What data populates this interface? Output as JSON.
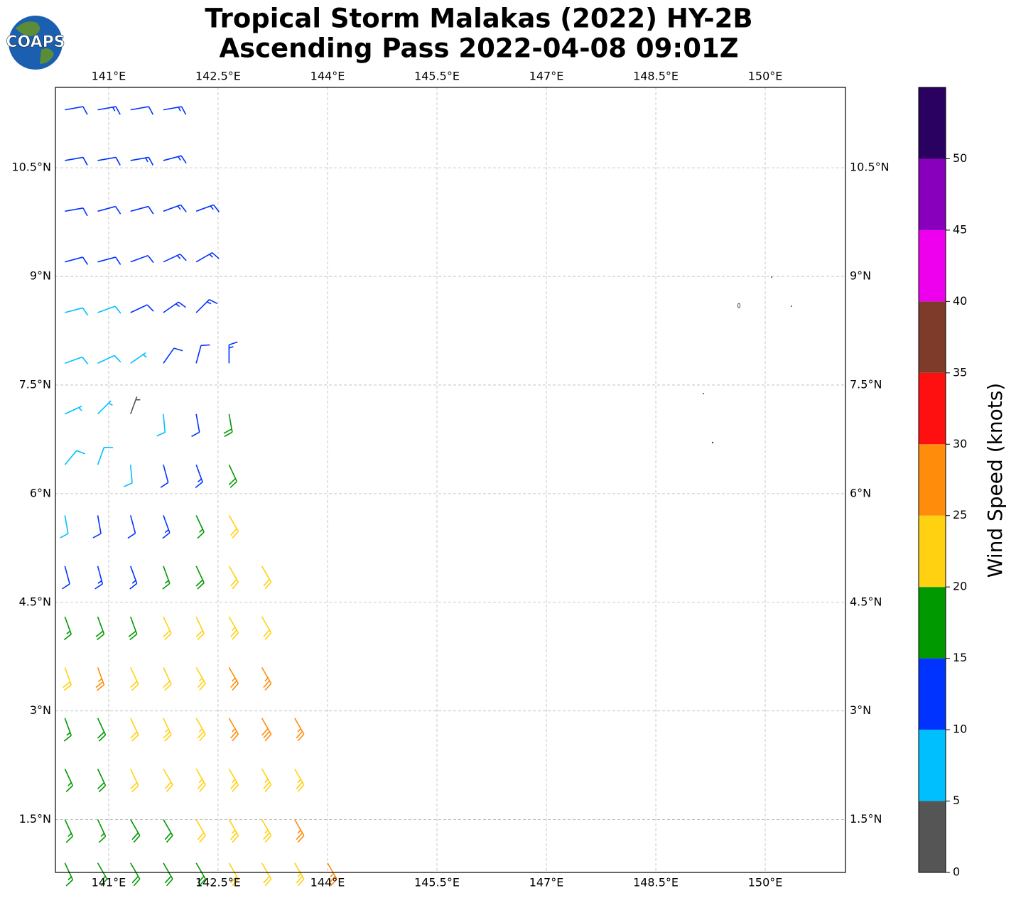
{
  "logo_text": "COAPS",
  "chart_data": {
    "type": "barbs",
    "title": "Tropical Storm Malakas (2022) HY-2B",
    "subtitle": "Ascending Pass 2022-04-08 09:01Z",
    "xlim": [
      140.27,
      151.1
    ],
    "ylim": [
      0.77,
      11.61
    ],
    "xticks": [
      {
        "value": 141,
        "label": "141°E"
      },
      {
        "value": 142.5,
        "label": "142.5°E"
      },
      {
        "value": 144,
        "label": "144°E"
      },
      {
        "value": 145.5,
        "label": "145.5°E"
      },
      {
        "value": 147,
        "label": "147°E"
      },
      {
        "value": 148.5,
        "label": "148.5°E"
      },
      {
        "value": 150,
        "label": "150°E"
      }
    ],
    "yticks": [
      {
        "value": 1.5,
        "label": "1.5°N"
      },
      {
        "value": 3,
        "label": "3°N"
      },
      {
        "value": 4.5,
        "label": "4.5°N"
      },
      {
        "value": 6,
        "label": "6°N"
      },
      {
        "value": 7.5,
        "label": "7.5°N"
      },
      {
        "value": 9,
        "label": "9°N"
      },
      {
        "value": 10.5,
        "label": "10.5°N"
      }
    ],
    "grid": true,
    "colorbar": {
      "label": "Wind Speed (knots)",
      "bounds": [
        0,
        5,
        10,
        15,
        20,
        25,
        30,
        35,
        40,
        45,
        50,
        55
      ],
      "colors": [
        "#555555",
        "#00bfff",
        "#0033ff",
        "#009900",
        "#ffd111",
        "#ff8c0a",
        "#ff1010",
        "#7f3b2a",
        "#ee00ee",
        "#8800bb",
        "#2a0060"
      ],
      "ticks": [
        0,
        5,
        10,
        15,
        20,
        25,
        30,
        35,
        40,
        45,
        50
      ]
    },
    "rows": [
      {
        "lat": 11.3,
        "lon": [
          140.4,
          140.85,
          141.3,
          141.75
        ],
        "speed": [
          12,
          13,
          12,
          14
        ],
        "direction": [
          80,
          80,
          80,
          80
        ]
      },
      {
        "lat": 10.6,
        "lon": [
          140.4,
          140.85,
          141.3,
          141.75
        ],
        "speed": [
          11,
          12,
          13,
          14
        ],
        "direction": [
          80,
          80,
          80,
          75
        ]
      },
      {
        "lat": 9.9,
        "lon": [
          140.4,
          140.85,
          141.3,
          141.75,
          142.2
        ],
        "speed": [
          10,
          11,
          12,
          13,
          13
        ],
        "direction": [
          80,
          75,
          75,
          70,
          70
        ]
      },
      {
        "lat": 9.2,
        "lon": [
          140.4,
          140.85,
          141.3,
          141.75,
          142.2
        ],
        "speed": [
          11,
          12,
          12,
          13,
          14
        ],
        "direction": [
          75,
          75,
          70,
          65,
          60
        ]
      },
      {
        "lat": 8.5,
        "lon": [
          140.4,
          140.85,
          141.3,
          141.75,
          142.2
        ],
        "speed": [
          9,
          8,
          12,
          13,
          14
        ],
        "direction": [
          75,
          70,
          65,
          55,
          45
        ]
      },
      {
        "lat": 7.8,
        "lon": [
          140.4,
          140.85,
          141.3,
          141.75,
          142.2,
          142.65
        ],
        "speed": [
          8,
          8,
          7,
          11,
          12,
          13
        ],
        "direction": [
          70,
          65,
          55,
          35,
          15,
          0
        ]
      },
      {
        "lat": 7.1,
        "lon": [
          140.4,
          140.85,
          141.3,
          141.75,
          142.2,
          142.65
        ],
        "speed": [
          7,
          6,
          4,
          8,
          12,
          18
        ],
        "direction": [
          65,
          45,
          20,
          175,
          170,
          170
        ]
      },
      {
        "lat": 6.4,
        "lon": [
          140.4,
          140.85,
          141.3,
          141.75,
          142.2,
          142.65
        ],
        "speed": [
          8,
          9,
          8,
          12,
          14,
          18
        ],
        "direction": [
          40,
          20,
          175,
          165,
          160,
          155
        ]
      },
      {
        "lat": 5.7,
        "lon": [
          140.4,
          140.85,
          141.3,
          141.75,
          142.2,
          142.65
        ],
        "speed": [
          9,
          11,
          12,
          13,
          17,
          21
        ],
        "direction": [
          170,
          170,
          165,
          160,
          155,
          150
        ]
      },
      {
        "lat": 5.0,
        "lon": [
          140.4,
          140.85,
          141.3,
          141.75,
          142.2,
          142.65,
          143.1
        ],
        "speed": [
          12,
          13,
          14,
          16,
          18,
          22,
          22
        ],
        "direction": [
          165,
          165,
          160,
          160,
          155,
          150,
          150
        ]
      },
      {
        "lat": 4.3,
        "lon": [
          140.4,
          140.85,
          141.3,
          141.75,
          142.2,
          142.65,
          143.1
        ],
        "speed": [
          17,
          18,
          19,
          21,
          22,
          23,
          22
        ],
        "direction": [
          160,
          160,
          160,
          155,
          155,
          150,
          150
        ]
      },
      {
        "lat": 3.6,
        "lon": [
          140.4,
          140.85,
          141.3,
          141.75,
          142.2,
          142.65,
          143.1
        ],
        "speed": [
          22,
          26,
          22,
          22,
          23,
          26,
          27
        ],
        "direction": [
          160,
          160,
          155,
          155,
          150,
          150,
          150
        ]
      },
      {
        "lat": 2.9,
        "lon": [
          140.4,
          140.85,
          141.3,
          141.75,
          142.2,
          142.65,
          143.1,
          143.55
        ],
        "speed": [
          17,
          18,
          22,
          23,
          23,
          27,
          28,
          26
        ],
        "direction": [
          160,
          155,
          155,
          155,
          150,
          150,
          150,
          150
        ]
      },
      {
        "lat": 2.2,
        "lon": [
          140.4,
          140.85,
          141.3,
          141.75,
          142.2,
          142.65,
          143.1,
          143.55
        ],
        "speed": [
          17,
          18,
          22,
          22,
          23,
          23,
          24,
          23
        ],
        "direction": [
          155,
          155,
          155,
          150,
          150,
          150,
          150,
          150
        ]
      },
      {
        "lat": 1.5,
        "lon": [
          140.4,
          140.85,
          141.3,
          141.75,
          142.2,
          142.65,
          143.1,
          143.55
        ],
        "speed": [
          17,
          17,
          18,
          19,
          21,
          23,
          24,
          27
        ],
        "direction": [
          155,
          155,
          150,
          150,
          150,
          150,
          150,
          150
        ]
      },
      {
        "lat": 0.9,
        "lon": [
          140.4,
          140.85,
          141.3,
          141.75,
          142.2,
          142.65,
          143.1,
          143.55,
          144.0
        ],
        "speed": [
          17,
          17,
          18,
          19,
          19,
          21,
          22,
          24,
          27
        ],
        "direction": [
          155,
          150,
          150,
          150,
          150,
          150,
          150,
          150,
          150
        ]
      }
    ]
  }
}
